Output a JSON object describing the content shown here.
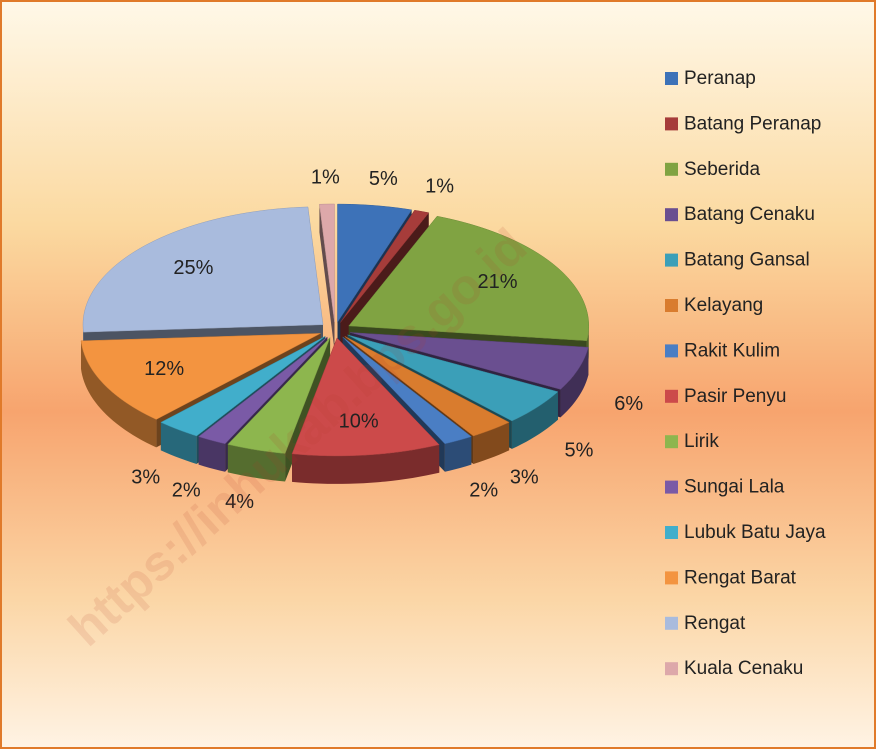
{
  "chart_data": {
    "type": "pie",
    "watermark": "https://inhukab.bps.go.id",
    "categories": [
      "Peranap",
      "Batang Peranap",
      "Seberida",
      "Batang Cenaku",
      "Batang Gansal",
      "Kelayang",
      "Rakit Kulim",
      "Pasir Penyu",
      "Lirik",
      "Sungai Lala",
      "Lubuk Batu Jaya",
      "Rengat Barat",
      "Rengat",
      "Kuala Cenaku"
    ],
    "values": [
      5,
      1,
      21,
      6,
      5,
      3,
      2,
      10,
      4,
      2,
      3,
      12,
      25,
      1
    ],
    "value_labels": [
      "5%",
      "1%",
      "21%",
      "6%",
      "5%",
      "3%",
      "2%",
      "10%",
      "4%",
      "2%",
      "3%",
      "12%",
      "25%",
      "1%"
    ],
    "colors": [
      "#3D72B8",
      "#A63C3A",
      "#80A342",
      "#6A4F90",
      "#3B9FB8",
      "#D97C2E",
      "#4A7EC4",
      "#CC4A4A",
      "#8DB64E",
      "#7A5AA6",
      "#41AECB",
      "#F39440",
      "#A9BBDD",
      "#DDA8AA"
    ],
    "legend": "right"
  }
}
